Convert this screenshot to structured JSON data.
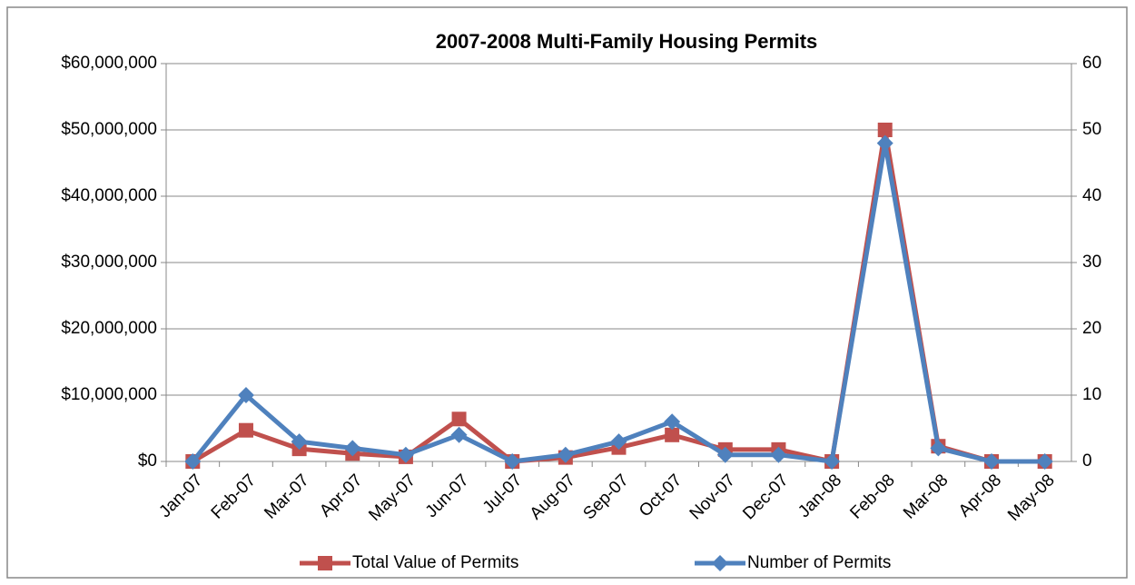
{
  "chart_data": {
    "type": "line",
    "title": "2007-2008 Multi-Family Housing Permits",
    "categories": [
      "Jan-07",
      "Feb-07",
      "Mar-07",
      "Apr-07",
      "May-07",
      "Jun-07",
      "Jul-07",
      "Aug-07",
      "Sep-07",
      "Oct-07",
      "Nov-07",
      "Dec-07",
      "Jan-08",
      "Feb-08",
      "Mar-08",
      "Apr-08",
      "May-08"
    ],
    "series": [
      {
        "name": "Total Value of Permits",
        "color": "#c0504d",
        "marker": "square",
        "values": [
          0,
          4700000,
          1900000,
          1200000,
          700000,
          6400000,
          0,
          600000,
          2100000,
          4000000,
          1800000,
          1800000,
          0,
          50000000,
          2300000,
          0,
          0
        ]
      },
      {
        "name": "Number of Permits",
        "color": "#4f81bd",
        "marker": "diamond",
        "axis": "y2",
        "values": [
          0,
          10,
          3,
          2,
          1,
          4,
          0,
          1,
          3,
          6,
          1,
          1,
          0,
          48,
          2,
          0,
          0
        ]
      }
    ],
    "ylim": [
      0,
      60000000
    ],
    "yticks": [
      {
        "value": 0,
        "label": "$0"
      },
      {
        "value": 10000000,
        "label": "$10,000,000"
      },
      {
        "value": 20000000,
        "label": "$20,000,000"
      },
      {
        "value": 30000000,
        "label": "$30,000,000"
      },
      {
        "value": 40000000,
        "label": "$40,000,000"
      },
      {
        "value": 50000000,
        "label": "$50,000,000"
      },
      {
        "value": 60000000,
        "label": "$60,000,000"
      }
    ],
    "y2lim": [
      0,
      60
    ],
    "y2ticks": [
      0,
      10,
      20,
      30,
      40,
      50,
      60
    ],
    "grid": true,
    "legend": "bottom"
  }
}
